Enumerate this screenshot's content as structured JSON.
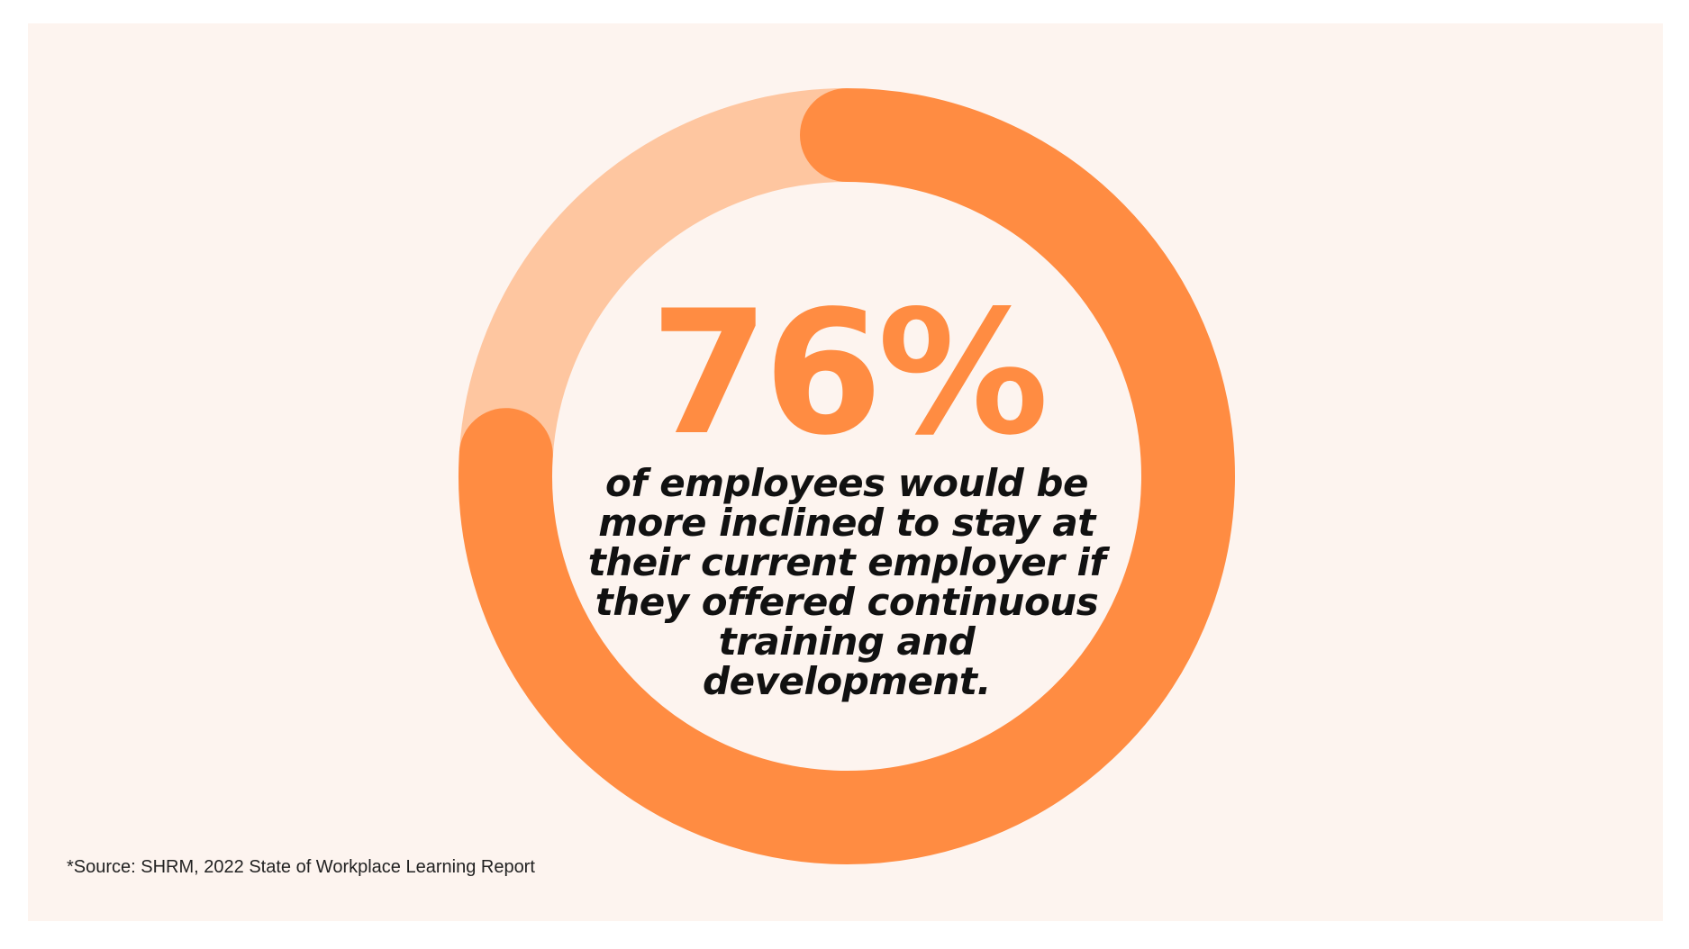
{
  "chart_data": {
    "type": "donut",
    "values": [
      76,
      24
    ],
    "value_labels": [
      "76%",
      null
    ],
    "colors": [
      "#ff8c42",
      "#fec6a0"
    ],
    "description": "of employees would be more inclined to stay at their current employer if they offered continuous training and development.",
    "source": "*Source: SHRM, 2022 State of Workplace Learning Report"
  }
}
